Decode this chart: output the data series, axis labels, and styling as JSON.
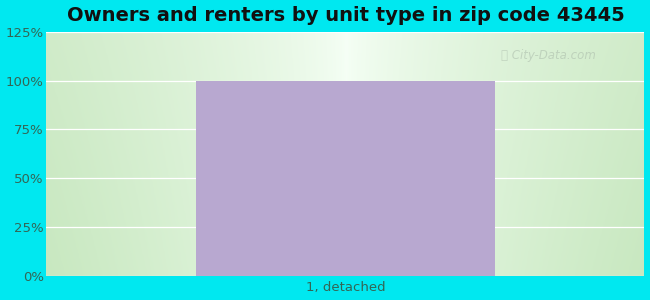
{
  "title": "Owners and renters by unit type in zip code 43445",
  "categories": [
    "1, detached"
  ],
  "values": [
    100
  ],
  "bar_color": "#b8a8d0",
  "ylim": [
    0,
    125
  ],
  "yticks": [
    0,
    25,
    50,
    75,
    100,
    125
  ],
  "ytick_labels": [
    "0%",
    "25%",
    "50%",
    "75%",
    "100%",
    "125%"
  ],
  "title_fontsize": 14,
  "tick_fontsize": 9.5,
  "bar_width": 0.5,
  "fig_bg_color": "#00e8f0",
  "axes_bg_left_color": "#c8e8c0",
  "axes_bg_center_color": "#f4fff4",
  "watermark_text": "City-Data.com",
  "watermark_color": "#aabbaa",
  "watermark_alpha": 0.55,
  "grid_color": "#ffffff",
  "tick_color": "#336655"
}
